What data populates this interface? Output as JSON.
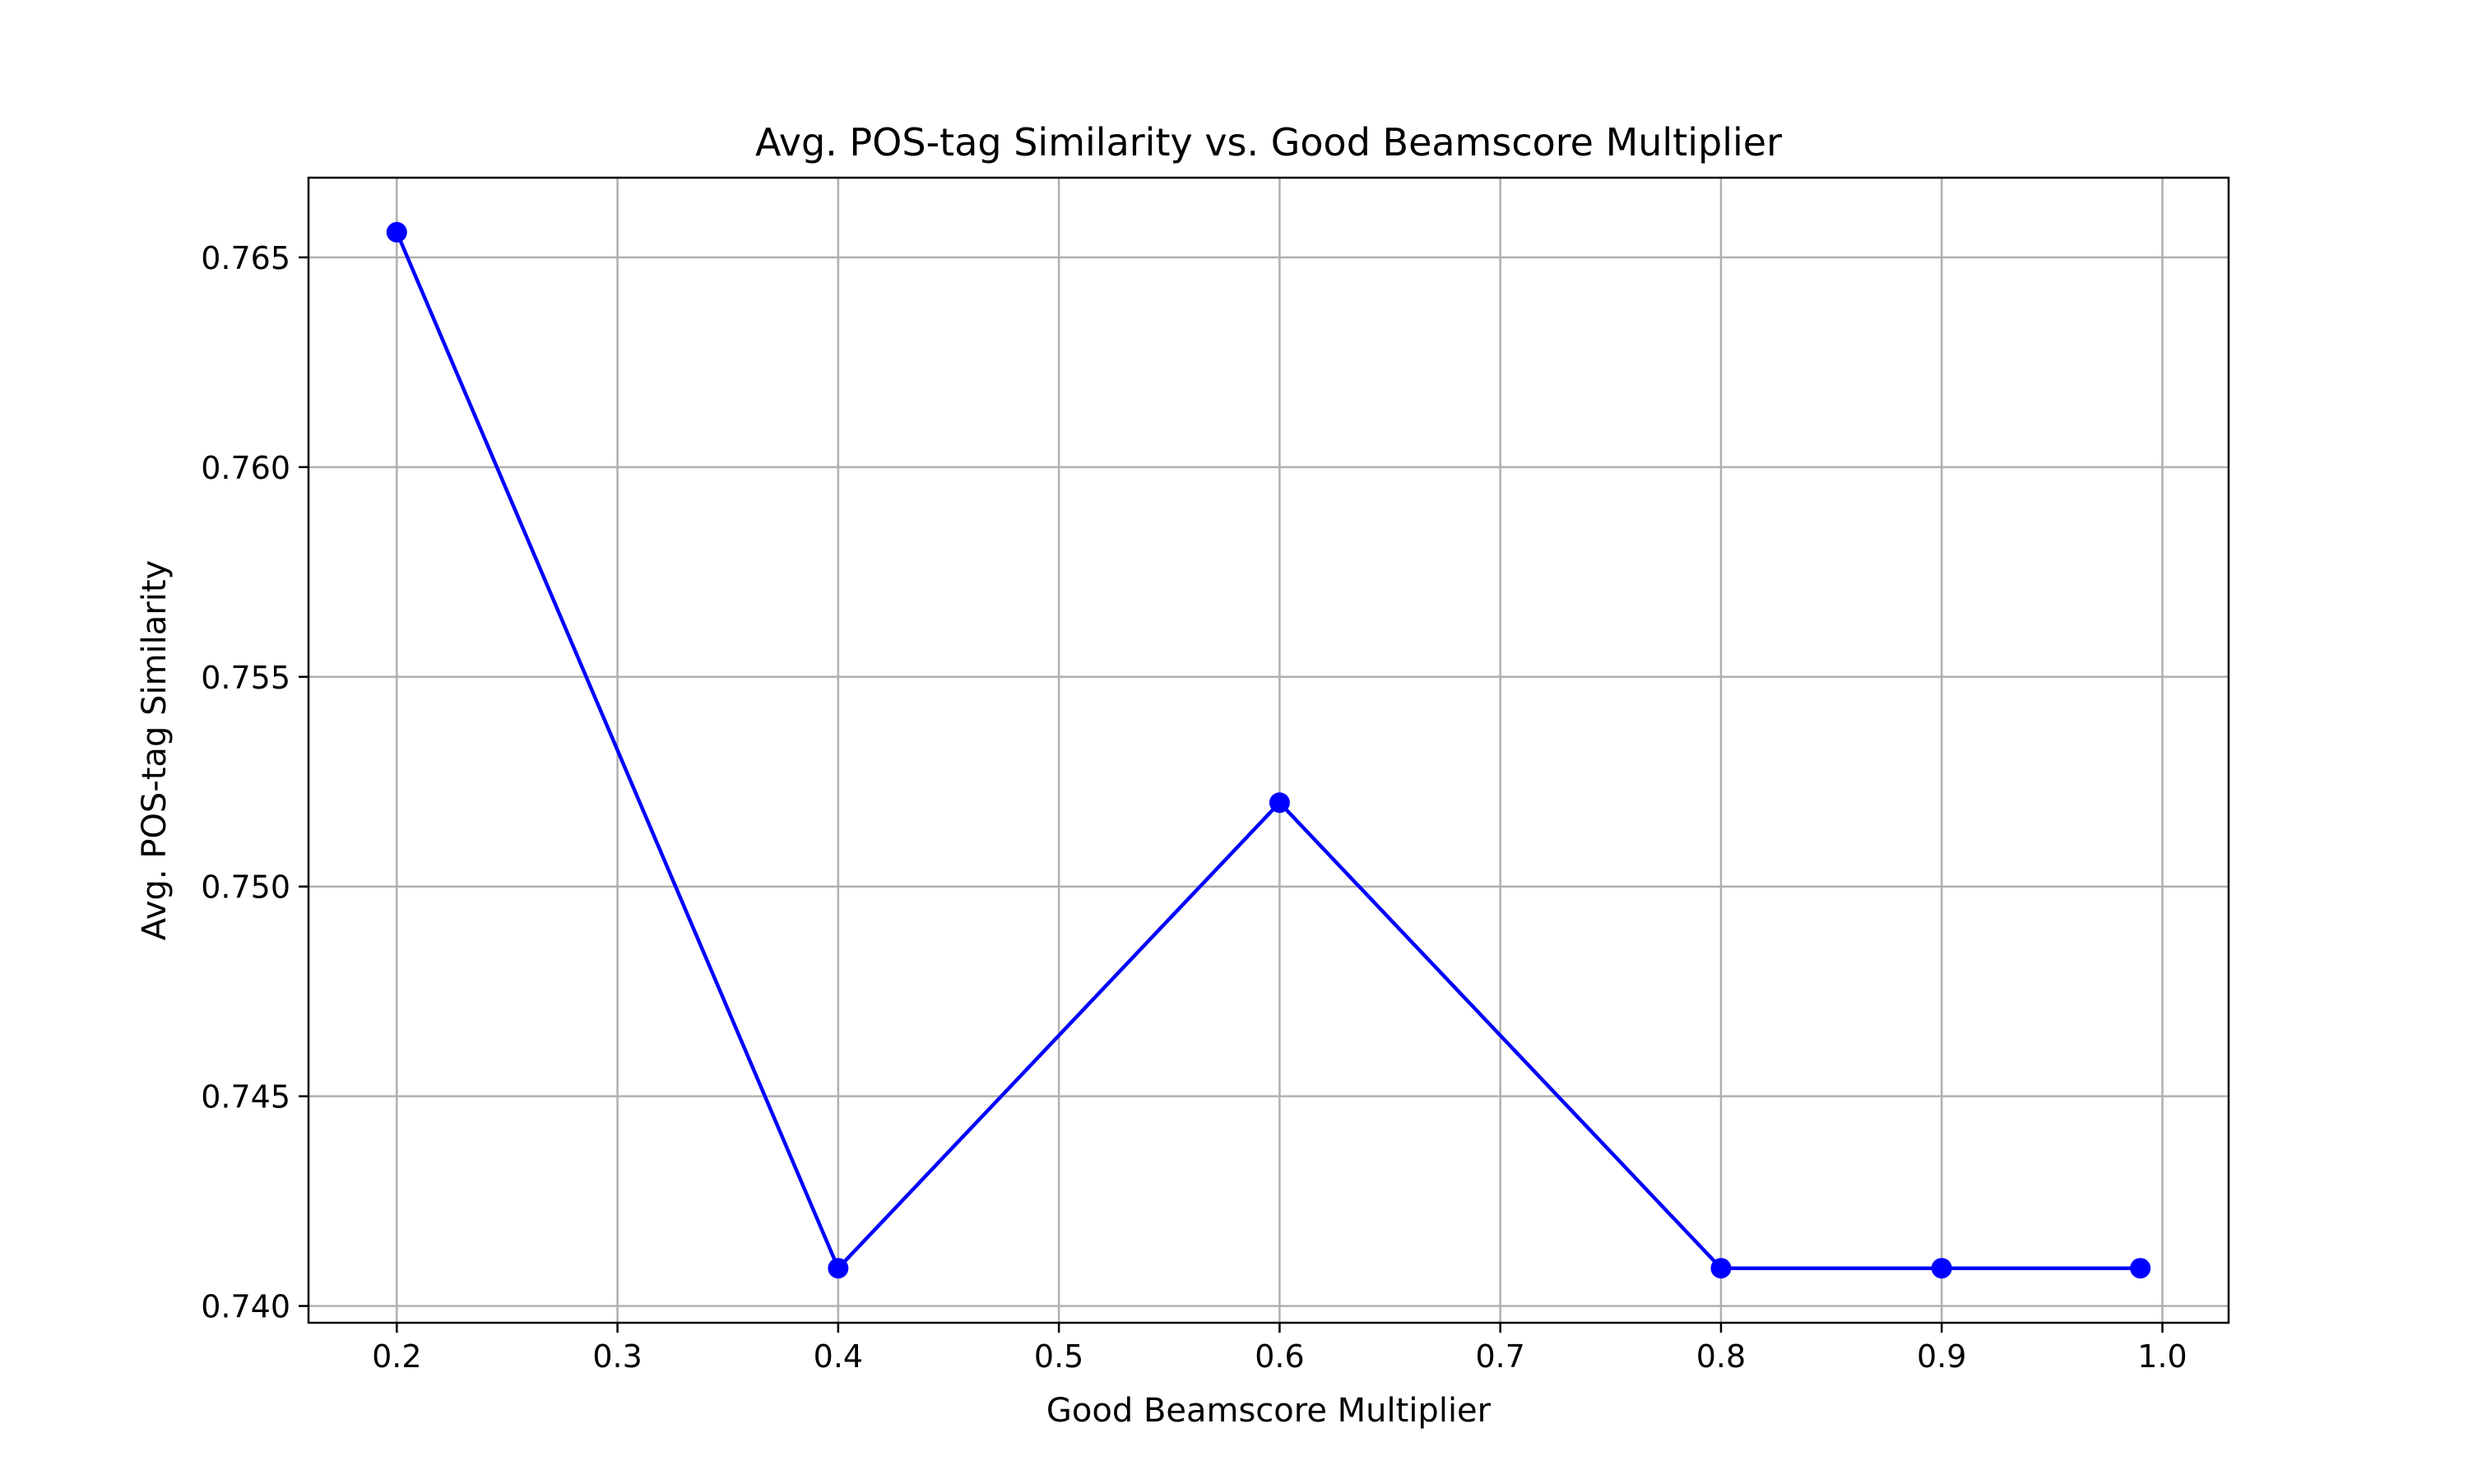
{
  "chart_data": {
    "type": "line",
    "title": "Avg. POS-tag Similarity vs. Good Beamscore Multiplier",
    "xlabel": "Good Beamscore Multiplier",
    "ylabel": "Avg. POS-tag Similarity",
    "xlim": [
      0.16,
      1.03
    ],
    "ylim": [
      0.7396,
      0.7669
    ],
    "xticks": [
      0.2,
      0.3,
      0.4,
      0.5,
      0.6,
      0.7,
      0.8,
      0.9,
      1.0
    ],
    "xtick_labels": [
      "0.2",
      "0.3",
      "0.4",
      "0.5",
      "0.6",
      "0.7",
      "0.8",
      "0.9",
      "1.0"
    ],
    "yticks": [
      0.74,
      0.745,
      0.75,
      0.755,
      0.76,
      0.765
    ],
    "ytick_labels": [
      "0.740",
      "0.745",
      "0.750",
      "0.755",
      "0.760",
      "0.765"
    ],
    "grid": true,
    "series": [
      {
        "x": [
          0.2,
          0.4,
          0.6,
          0.8,
          0.9,
          0.99
        ],
        "y": [
          0.7656,
          0.7409,
          0.752,
          0.7409,
          0.7409,
          0.7409
        ],
        "color": "#0000ff",
        "marker": "circle"
      }
    ]
  }
}
